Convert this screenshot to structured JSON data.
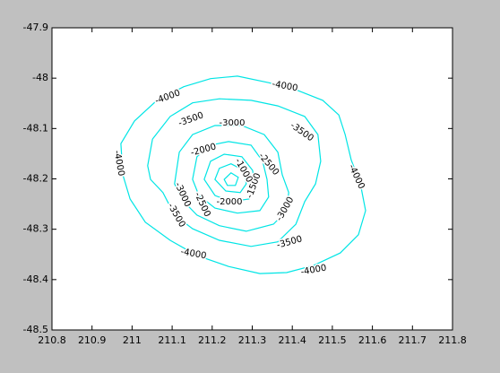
{
  "chart_data": {
    "type": "contour",
    "color": "#00e5e5",
    "xlim": [
      210.8,
      211.8
    ],
    "xticks": [
      210.8,
      210.9,
      211,
      211.1,
      211.2,
      211.3,
      211.4,
      211.5,
      211.6,
      211.7,
      211.8
    ],
    "ylim": [
      -48.5,
      -47.9
    ],
    "yticks": [
      -47.9,
      -48,
      -48.1,
      -48.2,
      -48.3,
      -48.4,
      -48.5
    ],
    "contours": [
      {
        "level": -4000,
        "x": [
          210.972,
          211.006,
          211.062,
          211.129,
          211.196,
          211.263,
          211.341,
          211.409,
          211.476,
          211.516,
          211.532,
          211.547,
          211.57,
          211.583,
          211.565,
          211.52,
          211.453,
          211.386,
          211.319,
          211.241,
          211.162,
          211.095,
          211.033,
          210.995,
          210.977
        ],
        "y": [
          -48.13,
          -48.085,
          -48.044,
          -48.017,
          -48.001,
          -47.996,
          -48.009,
          -48.023,
          -48.044,
          -48.073,
          -48.112,
          -48.162,
          -48.21,
          -48.263,
          -48.311,
          -48.347,
          -48.372,
          -48.386,
          -48.388,
          -48.374,
          -48.352,
          -48.322,
          -48.286,
          -48.24,
          -48.192
        ]
      },
      {
        "level": -3500,
        "x": [
          211.039,
          211.051,
          211.095,
          211.151,
          211.218,
          211.297,
          211.364,
          211.431,
          211.464,
          211.471,
          211.458,
          211.431,
          211.409,
          211.364,
          211.297,
          211.218,
          211.151,
          211.106,
          211.077,
          211.046
        ],
        "y": [
          -48.174,
          -48.121,
          -48.076,
          -48.049,
          -48.041,
          -48.044,
          -48.055,
          -48.076,
          -48.112,
          -48.165,
          -48.21,
          -48.245,
          -48.29,
          -48.325,
          -48.334,
          -48.322,
          -48.299,
          -48.272,
          -48.227,
          -48.201
        ]
      },
      {
        "level": -3000,
        "x": [
          211.106,
          211.118,
          211.151,
          211.207,
          211.274,
          211.33,
          211.364,
          211.375,
          211.391,
          211.386,
          211.353,
          211.285,
          211.218,
          211.162,
          211.129
        ],
        "y": [
          -48.21,
          -48.147,
          -48.112,
          -48.094,
          -48.094,
          -48.112,
          -48.147,
          -48.192,
          -48.227,
          -48.263,
          -48.29,
          -48.304,
          -48.293,
          -48.272,
          -48.245
        ]
      },
      {
        "level": -2500,
        "x": [
          211.151,
          211.162,
          211.196,
          211.241,
          211.297,
          211.326,
          211.337,
          211.341,
          211.319,
          211.263,
          211.207,
          211.167
        ],
        "y": [
          -48.201,
          -48.156,
          -48.133,
          -48.126,
          -48.133,
          -48.165,
          -48.201,
          -48.236,
          -48.263,
          -48.268,
          -48.258,
          -48.233
        ]
      },
      {
        "level": -2000,
        "x": [
          211.18,
          211.196,
          211.23,
          211.274,
          211.301,
          211.308,
          211.292,
          211.247,
          211.207
        ],
        "y": [
          -48.201,
          -48.165,
          -48.151,
          -48.156,
          -48.183,
          -48.219,
          -48.24,
          -48.245,
          -48.233
        ]
      },
      {
        "level": -1500,
        "x": [
          211.207,
          211.218,
          211.247,
          211.279,
          211.285,
          211.27,
          211.234
        ],
        "y": [
          -48.201,
          -48.179,
          -48.17,
          -48.183,
          -48.21,
          -48.227,
          -48.224
        ]
      },
      {
        "level": -1000,
        "x": [
          211.23,
          211.247,
          211.265,
          211.258,
          211.238
        ],
        "y": [
          -48.201,
          -48.188,
          -48.197,
          -48.213,
          -48.213
        ]
      }
    ]
  }
}
